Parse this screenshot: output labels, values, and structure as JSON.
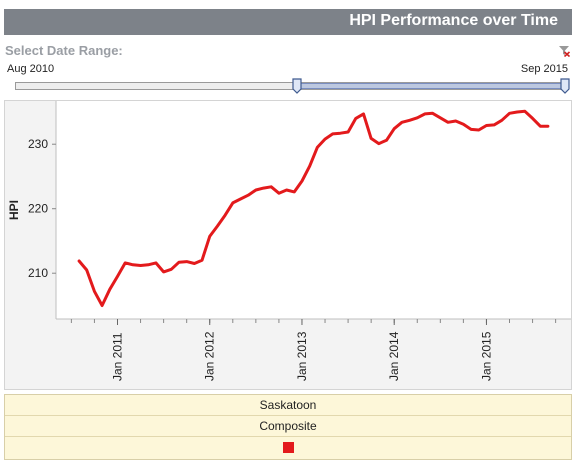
{
  "header": {
    "title": "HPI Performance over Time"
  },
  "date_range": {
    "label": "Select Date Range:",
    "start_label": "Aug 2010",
    "end_label": "Sep 2015",
    "selected_start_fraction": 0.51,
    "selected_end_fraction": 1.0,
    "clear_icon": "clear-filter-icon"
  },
  "legend": {
    "region": "Saskatoon",
    "property_type": "Composite",
    "color": "#e31a1c"
  },
  "chart_data": {
    "type": "line",
    "title": "",
    "xlabel": "",
    "ylabel": "HPI",
    "x_axis": "date",
    "xlim": [
      "2010-05",
      "2015-12"
    ],
    "ylim": [
      202.9,
      236.7
    ],
    "yticks": [
      210,
      220,
      230
    ],
    "xtick_labels": [
      "Jan 2011",
      "Jan 2012",
      "Jan 2013",
      "Jan 2014",
      "Jan 2015"
    ],
    "xtick_dates": [
      "2011-01",
      "2012-01",
      "2013-01",
      "2014-01",
      "2015-01"
    ],
    "grid": false,
    "series": [
      {
        "name": "Saskatoon Composite",
        "color": "#e31a1c",
        "x": [
          "2010-08",
          "2010-09",
          "2010-10",
          "2010-11",
          "2010-12",
          "2011-01",
          "2011-02",
          "2011-03",
          "2011-04",
          "2011-05",
          "2011-06",
          "2011-07",
          "2011-08",
          "2011-09",
          "2011-10",
          "2011-11",
          "2011-12",
          "2012-01",
          "2012-02",
          "2012-03",
          "2012-04",
          "2012-05",
          "2012-06",
          "2012-07",
          "2012-08",
          "2012-09",
          "2012-10",
          "2012-11",
          "2012-12",
          "2013-01",
          "2013-02",
          "2013-03",
          "2013-04",
          "2013-05",
          "2013-06",
          "2013-07",
          "2013-08",
          "2013-09",
          "2013-10",
          "2013-11",
          "2013-12",
          "2014-01",
          "2014-02",
          "2014-03",
          "2014-04",
          "2014-05",
          "2014-06",
          "2014-07",
          "2014-08",
          "2014-09",
          "2014-10",
          "2014-11",
          "2014-12",
          "2015-01",
          "2015-02",
          "2015-03",
          "2015-04",
          "2015-05",
          "2015-06",
          "2015-07",
          "2015-08",
          "2015-09"
        ],
        "y": [
          211.9,
          210.5,
          207.2,
          205.0,
          207.5,
          209.5,
          211.6,
          211.3,
          211.2,
          211.3,
          211.6,
          210.2,
          210.6,
          211.7,
          211.8,
          211.5,
          212.0,
          215.7,
          217.3,
          219.0,
          220.9,
          221.5,
          222.1,
          222.9,
          223.2,
          223.4,
          222.4,
          222.9,
          222.6,
          224.3,
          226.6,
          229.5,
          230.8,
          231.6,
          231.7,
          231.9,
          234.0,
          234.7,
          230.9,
          230.1,
          230.6,
          232.4,
          233.4,
          233.7,
          234.1,
          234.7,
          234.8,
          234.1,
          233.4,
          233.6,
          233.1,
          232.3,
          232.2,
          232.9,
          233.0,
          233.7,
          234.8,
          235.0,
          235.1,
          234.0,
          232.8,
          232.8
        ]
      }
    ]
  }
}
